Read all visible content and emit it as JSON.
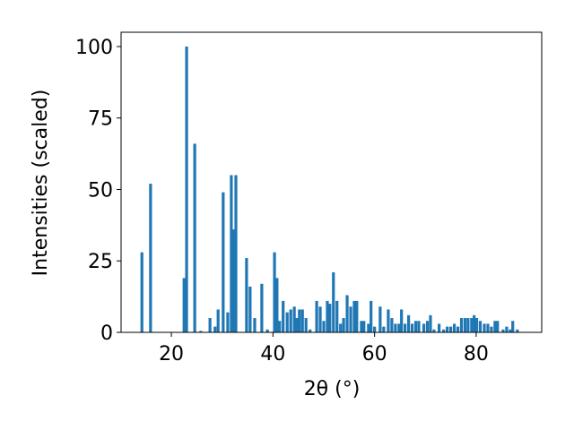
{
  "chart_data": {
    "type": "bar",
    "xlabel": "2θ (°)",
    "ylabel": "Intensities (scaled)",
    "color": "#1f77b4",
    "xlim": [
      10.1,
      92.9
    ],
    "ylim": [
      0,
      105
    ],
    "xticks": [
      20,
      40,
      60,
      80
    ],
    "yticks": [
      0,
      25,
      50,
      75,
      100
    ],
    "x": [
      14.2,
      15.9,
      22.5,
      23.0,
      24.6,
      25.8,
      27.6,
      28.6,
      29.2,
      30.2,
      31.1,
      31.8,
      32.3,
      32.7,
      34.8,
      35.5,
      36.4,
      37.8,
      38.9,
      40.3,
      40.8,
      41.3,
      42.0,
      42.8,
      43.5,
      44.2,
      44.7,
      45.2,
      45.8,
      46.5,
      47.3,
      48.6,
      49.3,
      50.0,
      50.7,
      51.2,
      51.9,
      52.6,
      53.3,
      53.9,
      54.6,
      55.3,
      56.0,
      56.5,
      57.4,
      57.9,
      58.8,
      59.3,
      60.0,
      61.1,
      61.8,
      62.7,
      63.4,
      64.1,
      64.8,
      65.3,
      66.0,
      66.7,
      67.4,
      68.1,
      68.7,
      69.7,
      70.4,
      71.0,
      71.7,
      72.7,
      73.6,
      74.3,
      75.0,
      75.7,
      76.4,
      77.1,
      77.8,
      78.4,
      79.1,
      79.6,
      80.1,
      80.8,
      81.6,
      82.3,
      83.0,
      83.7,
      84.2,
      85.3,
      86.0,
      86.7,
      87.2,
      88.1
    ],
    "values": [
      28,
      52,
      19,
      100,
      66,
      0.5,
      5,
      2,
      8,
      49,
      7,
      55,
      36,
      55,
      26,
      16,
      5,
      17,
      1,
      28,
      19,
      4,
      11,
      7,
      8,
      9,
      5,
      8,
      8,
      5,
      1,
      11,
      9,
      4,
      11,
      10,
      21,
      11,
      3,
      5,
      13,
      9,
      11,
      11,
      4,
      4,
      3,
      11,
      2,
      9,
      2,
      8,
      5,
      3,
      3,
      8,
      3,
      6,
      3,
      4,
      4,
      3,
      4,
      6,
      1,
      3,
      1,
      2,
      2,
      3,
      2,
      5,
      5,
      5,
      5,
      6,
      5,
      4,
      3,
      3,
      2,
      4,
      4,
      1,
      2,
      1,
      4,
      1
    ]
  }
}
